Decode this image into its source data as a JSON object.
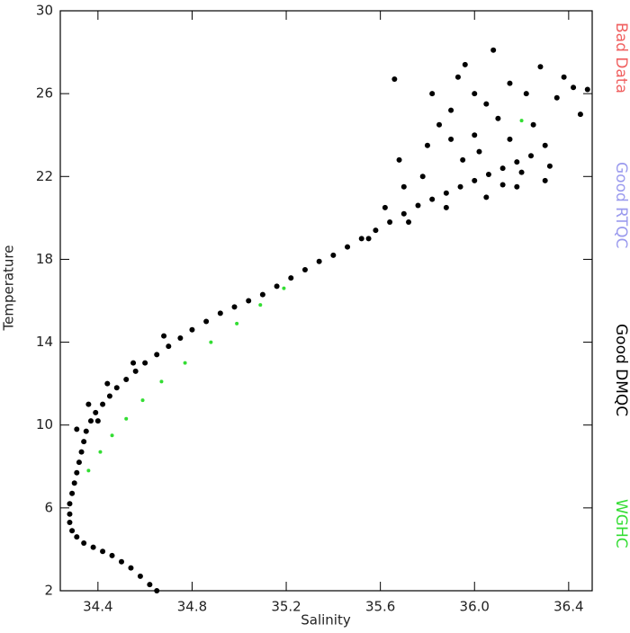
{
  "chart_data": {
    "type": "scatter",
    "xlabel": "Salinity",
    "ylabel": "Temperature",
    "xlim": [
      34.24,
      36.5
    ],
    "ylim": [
      2,
      30
    ],
    "xticks": [
      34.4,
      34.8,
      35.2,
      35.6,
      {
        "value": 36.0,
        "label": "36.0"
      },
      36.4
    ],
    "yticks": [
      2,
      6,
      10,
      14,
      18,
      22,
      26,
      30
    ],
    "series": [
      {
        "name": "Bad Data",
        "color": "#f06060",
        "x": [],
        "y": []
      },
      {
        "name": "Good RTQC",
        "color": "#9a9aee",
        "x": [],
        "y": []
      },
      {
        "name": "Good DMQC",
        "color": "#000000",
        "x": [
          34.65,
          34.62,
          34.58,
          34.54,
          34.5,
          34.46,
          34.42,
          34.38,
          34.34,
          34.31,
          34.29,
          34.28,
          34.28,
          34.28,
          34.29,
          34.3,
          34.31,
          34.32,
          34.33,
          34.34,
          34.35,
          34.37,
          34.39,
          34.42,
          34.45,
          34.48,
          34.52,
          34.56,
          34.6,
          34.65,
          34.7,
          34.75,
          34.8,
          34.86,
          34.92,
          34.98,
          35.04,
          35.1,
          35.16,
          35.22,
          35.28,
          35.34,
          35.4,
          35.46,
          35.52,
          35.58,
          35.64,
          35.7,
          35.76,
          35.82,
          35.88,
          35.94,
          36.0,
          36.06,
          36.12,
          36.18,
          36.24,
          34.31,
          34.36,
          34.44,
          34.55,
          34.68,
          34.4,
          35.55,
          35.62,
          35.7,
          35.68,
          35.78,
          35.8,
          35.85,
          35.82,
          35.9,
          35.93,
          35.96,
          36.0,
          36.02,
          36.05,
          36.08,
          36.1,
          36.12,
          36.15,
          36.18,
          36.2,
          36.22,
          36.25,
          36.28,
          36.3,
          36.32,
          36.35,
          36.38,
          36.42,
          36.45,
          36.48,
          35.66,
          35.88,
          35.95,
          36.05,
          35.72,
          36.0,
          36.15,
          36.3,
          35.9
        ],
        "y": [
          2.0,
          2.3,
          2.7,
          3.1,
          3.4,
          3.7,
          3.9,
          4.1,
          4.3,
          4.6,
          4.9,
          5.3,
          5.7,
          6.2,
          6.7,
          7.2,
          7.7,
          8.2,
          8.7,
          9.2,
          9.7,
          10.2,
          10.6,
          11.0,
          11.4,
          11.8,
          12.2,
          12.6,
          13.0,
          13.4,
          13.8,
          14.2,
          14.6,
          15.0,
          15.4,
          15.7,
          16.0,
          16.3,
          16.7,
          17.1,
          17.5,
          17.9,
          18.2,
          18.6,
          19.0,
          19.4,
          19.8,
          20.2,
          20.6,
          20.9,
          21.2,
          21.5,
          21.8,
          22.1,
          22.4,
          22.7,
          23.0,
          9.8,
          11.0,
          12.0,
          13.0,
          14.3,
          10.2,
          19.0,
          20.5,
          21.5,
          22.8,
          22.0,
          23.5,
          24.5,
          26.0,
          25.2,
          26.8,
          27.4,
          24.0,
          23.2,
          25.5,
          28.1,
          24.8,
          21.6,
          23.8,
          21.5,
          22.2,
          26.0,
          24.5,
          27.3,
          23.5,
          22.5,
          25.8,
          26.8,
          26.3,
          25.0,
          26.2,
          26.7,
          20.5,
          22.8,
          21.0,
          19.8,
          26.0,
          26.5,
          21.8,
          23.8
        ]
      },
      {
        "name": "WGHC",
        "color": "#33dd33",
        "x": [
          34.36,
          34.41,
          34.46,
          34.52,
          34.59,
          34.67,
          34.77,
          34.88,
          34.99,
          35.09,
          35.19,
          36.2
        ],
        "y": [
          7.8,
          8.7,
          9.5,
          10.3,
          11.2,
          12.1,
          13.0,
          14.0,
          14.9,
          15.8,
          16.6,
          24.7
        ]
      }
    ]
  }
}
